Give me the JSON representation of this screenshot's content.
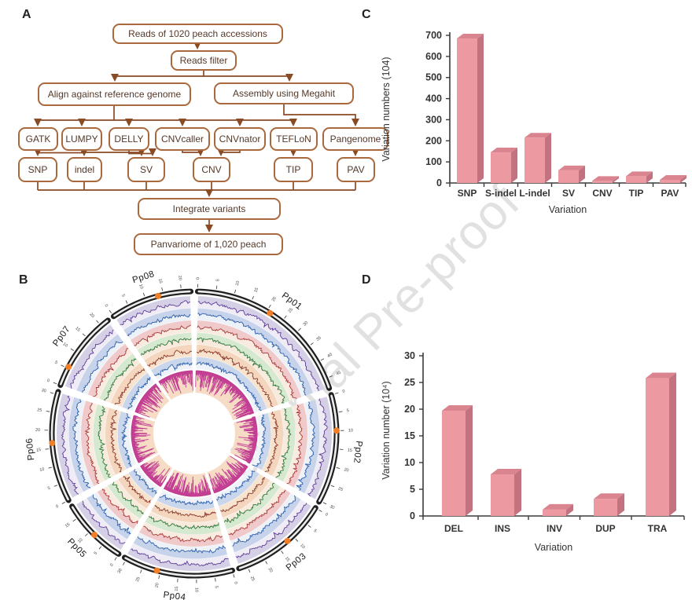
{
  "panels": {
    "a": "A",
    "b": "B",
    "c": "C",
    "d": "D"
  },
  "watermark": {
    "text": "Journal Pre-proof",
    "color": "#c9c9c9"
  },
  "flowchart": {
    "nodes": {
      "reads": "Reads of 1020 peach accessions",
      "filter": "Reads filter",
      "align": "Align against reference genome",
      "megahit": "Assembly using Megahit",
      "gatk": "GATK",
      "lumpy": "LUMPY",
      "delly": "DELLY",
      "cnvcaller": "CNVcaller",
      "cnvnator": "CNVnator",
      "teflon": "TEFLoN",
      "pangenome": "Pangenome",
      "snp": "SNP",
      "indel": "indel",
      "sv": "SV",
      "cnv": "CNV",
      "tip": "TIP",
      "pav": "PAV",
      "integrate": "Integrate variants",
      "panvariome": "Panvariome of 1,020 peach"
    },
    "colors": {
      "border": "#A9693D",
      "text": "#54392A",
      "arrow": "#8A4A24"
    }
  },
  "chart_data": [
    {
      "id": "panel-c",
      "type": "bar",
      "title": "",
      "categories": [
        "SNP",
        "S-indel",
        "L-indel",
        "SV",
        "CNV",
        "TIP",
        "PAV"
      ],
      "values": [
        685,
        145,
        215,
        60,
        10,
        32,
        15
      ],
      "xlabel": "Variation",
      "ylabel": "Variation numbers (104)",
      "ylim": [
        0,
        700
      ],
      "ytick_step": 100,
      "grid": false,
      "colors": {
        "face": "#EC99A1",
        "top": "#DA8490",
        "side": "#C3737F",
        "axis": "#3A3A3A",
        "text": "#333333"
      }
    },
    {
      "id": "panel-d",
      "type": "bar",
      "title": "",
      "categories": [
        "DEL",
        "INS",
        "INV",
        "DUP",
        "TRA"
      ],
      "values": [
        19.7,
        7.8,
        1.2,
        3.2,
        25.8
      ],
      "xlabel": "Variation",
      "ylabel": "Variation number (10⁴)",
      "ylim": [
        0,
        30
      ],
      "ytick_step": 5,
      "grid": false,
      "colors": {
        "face": "#EC99A1",
        "top": "#DA8490",
        "side": "#C3737F",
        "axis": "#3A3A3A",
        "text": "#333333"
      }
    }
  ],
  "circos": {
    "type": "circos-genome-plot",
    "tick_interval_mb": 5,
    "ideogram_color": "#1f1f1f",
    "centromere_color": "#F07F28",
    "chromosomes": [
      {
        "name": "Pp01",
        "size_mb": 47.8,
        "centromere_mb": 21.0
      },
      {
        "name": "Pp02",
        "size_mb": 30.4,
        "centromere_mb": 10.0
      },
      {
        "name": "Pp03",
        "size_mb": 27.4,
        "centromere_mb": 12.0
      },
      {
        "name": "Pp04",
        "size_mb": 30.6,
        "centromere_mb": 21.0
      },
      {
        "name": "Pp05",
        "size_mb": 18.5,
        "centromere_mb": 8.5
      },
      {
        "name": "Pp06",
        "size_mb": 30.8,
        "centromere_mb": 16.5
      },
      {
        "name": "Pp07",
        "size_mb": 22.4,
        "centromere_mb": 5.5
      },
      {
        "name": "Pp08",
        "size_mb": 22.6,
        "centromere_mb": 13.5
      }
    ],
    "tracks": [
      {
        "name": "track-1-purple",
        "style": "line",
        "line": "#5E3C99",
        "area": "#D5D0E6",
        "band": "#EFECF5"
      },
      {
        "name": "track-2-blue",
        "style": "line",
        "line": "#2A5CA8",
        "area": "#C6D3EA",
        "band": "#EDF1F8"
      },
      {
        "name": "track-3-red",
        "style": "line",
        "line": "#A93A3A",
        "area": "#F0CACA",
        "band": "#F9EBE0"
      },
      {
        "name": "track-4-green",
        "style": "line",
        "line": "#2F7A3C",
        "area": "#D5E8D0",
        "band": "#F8EADC"
      },
      {
        "name": "track-5-maroon",
        "style": "line",
        "line": "#8B3A2B",
        "area": "#F3D6BD",
        "band": "#F8E3CE"
      },
      {
        "name": "track-6-blue",
        "style": "line",
        "line": "#3163AE",
        "area": "#C9D6EC",
        "band": "#EFF3F9"
      },
      {
        "name": "track-7-magenta",
        "style": "bars",
        "line": "#C13A92",
        "area": "#F6DCC5",
        "band": "#F6DCC5"
      }
    ]
  }
}
